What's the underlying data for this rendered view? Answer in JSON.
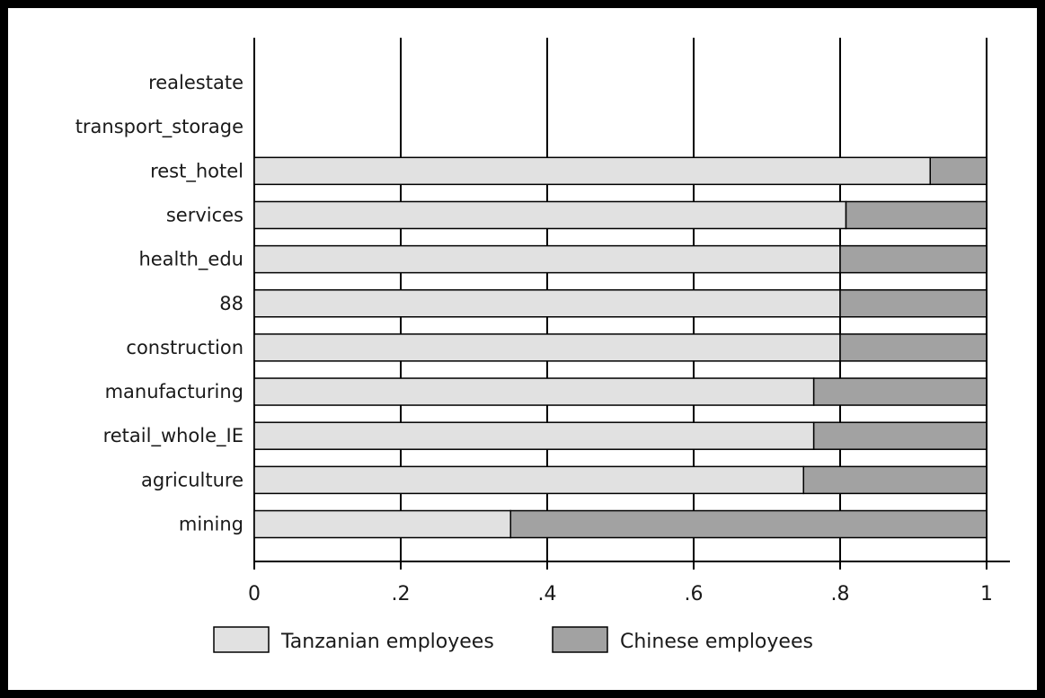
{
  "chart_data": {
    "type": "bar",
    "orientation": "horizontal",
    "stacked": true,
    "categories": [
      "realestate",
      "transport_storage",
      "rest_hotel",
      "services",
      "health_edu",
      "88",
      "construction",
      "manufacturing",
      "retail_whole_IE",
      "agriculture",
      "mining"
    ],
    "series": [
      {
        "name": "Tanzanian employees",
        "color": "#e1e1e1",
        "values": [
          null,
          null,
          0.923,
          0.808,
          0.8,
          0.8,
          0.8,
          0.764,
          0.764,
          0.75,
          0.35
        ]
      },
      {
        "name": "Chinese employees",
        "color": "#a2a2a2",
        "values": [
          null,
          null,
          0.077,
          0.192,
          0.2,
          0.2,
          0.2,
          0.236,
          0.236,
          0.25,
          0.65
        ]
      }
    ],
    "xlim": [
      0,
      1
    ],
    "xticks": [
      0,
      0.2,
      0.4,
      0.6,
      0.8,
      1
    ],
    "xtick_labels": [
      "0",
      ".2",
      ".4",
      ".6",
      ".8",
      "1"
    ],
    "grid": "vertical",
    "legend_position": "bottom",
    "title": "",
    "xlabel": "",
    "ylabel": ""
  }
}
